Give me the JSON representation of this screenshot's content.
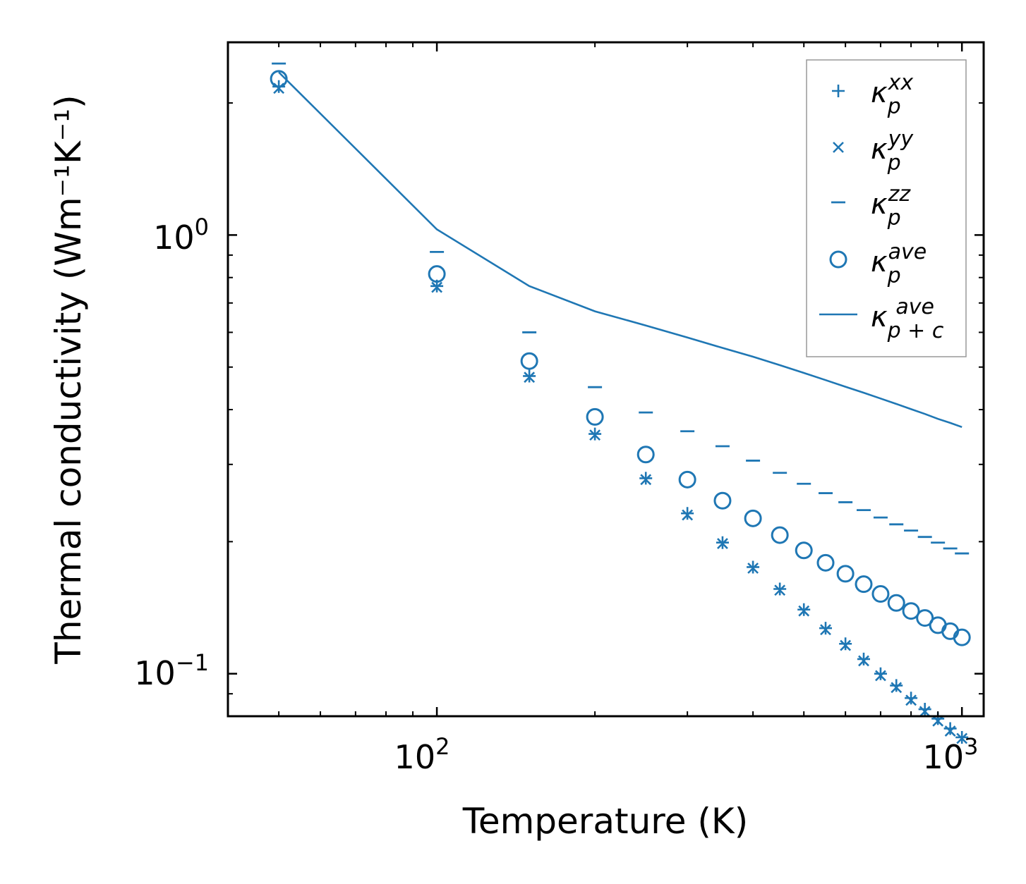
{
  "chart_data": {
    "type": "scatter",
    "scale": {
      "x": "log",
      "y": "log"
    },
    "xlabel": "Temperature (K)",
    "ylabel": "Thermal conductivity (Wm⁻¹K⁻¹)",
    "xlim": [
      40,
      1100
    ],
    "ylim": [
      0.08,
      2.75
    ],
    "x_ticks": [
      {
        "value": 100,
        "base": "10",
        "exp": "2"
      },
      {
        "value": 1000,
        "base": "10",
        "exp": "3"
      }
    ],
    "y_ticks": [
      {
        "value": 1,
        "base": "10",
        "exp": "0"
      },
      {
        "value": 0.1,
        "base": "10",
        "exp": "−1"
      }
    ],
    "color": "#1f77b4",
    "legend_position": "upper right",
    "x": [
      50,
      100,
      150,
      200,
      250,
      300,
      350,
      400,
      450,
      500,
      550,
      600,
      650,
      700,
      750,
      800,
      850,
      900,
      950,
      1000
    ],
    "series": [
      {
        "name": "kappa_p_xx",
        "label_main": "κ",
        "label_sub": "p",
        "label_sup": "xx",
        "marker": "plus",
        "values": [
          2.18,
          0.765,
          0.477,
          0.352,
          0.279,
          0.232,
          0.199,
          0.175,
          0.156,
          0.14,
          0.127,
          0.117,
          0.108,
          0.1,
          0.094,
          0.088,
          0.083,
          0.079,
          0.075,
          0.0716
        ]
      },
      {
        "name": "kappa_p_yy",
        "label_main": "κ",
        "label_sub": "p",
        "label_sup": "yy",
        "marker": "x",
        "values": [
          2.16,
          0.76,
          0.474,
          0.35,
          0.277,
          0.23,
          0.198,
          0.174,
          0.155,
          0.139,
          0.126,
          0.116,
          0.107,
          0.099,
          0.093,
          0.087,
          0.082,
          0.078,
          0.074,
          0.0712
        ]
      },
      {
        "name": "kappa_p_zz",
        "label_main": "κ",
        "label_sub": "p",
        "label_sup": "zz",
        "marker": "hline",
        "values": [
          2.46,
          0.915,
          0.6,
          0.45,
          0.394,
          0.357,
          0.33,
          0.306,
          0.287,
          0.271,
          0.258,
          0.246,
          0.236,
          0.227,
          0.219,
          0.212,
          0.205,
          0.199,
          0.193,
          0.188
        ]
      },
      {
        "name": "kappa_p_ave",
        "label_main": "κ",
        "label_sub": "p",
        "label_sup": "ave",
        "marker": "circle",
        "values": [
          2.27,
          0.815,
          0.516,
          0.385,
          0.316,
          0.277,
          0.248,
          0.226,
          0.207,
          0.191,
          0.179,
          0.169,
          0.16,
          0.152,
          0.145,
          0.139,
          0.134,
          0.129,
          0.125,
          0.121
        ]
      },
      {
        "name": "kappa_pc_ave",
        "label_main": "κ",
        "label_sub": "p + c",
        "label_sup": "ave",
        "marker": "line",
        "values": [
          2.35,
          1.03,
          0.765,
          0.67,
          0.622,
          0.584,
          0.553,
          0.528,
          0.505,
          0.485,
          0.467,
          0.451,
          0.437,
          0.424,
          0.412,
          0.401,
          0.391,
          0.381,
          0.373,
          0.365
        ]
      }
    ]
  }
}
